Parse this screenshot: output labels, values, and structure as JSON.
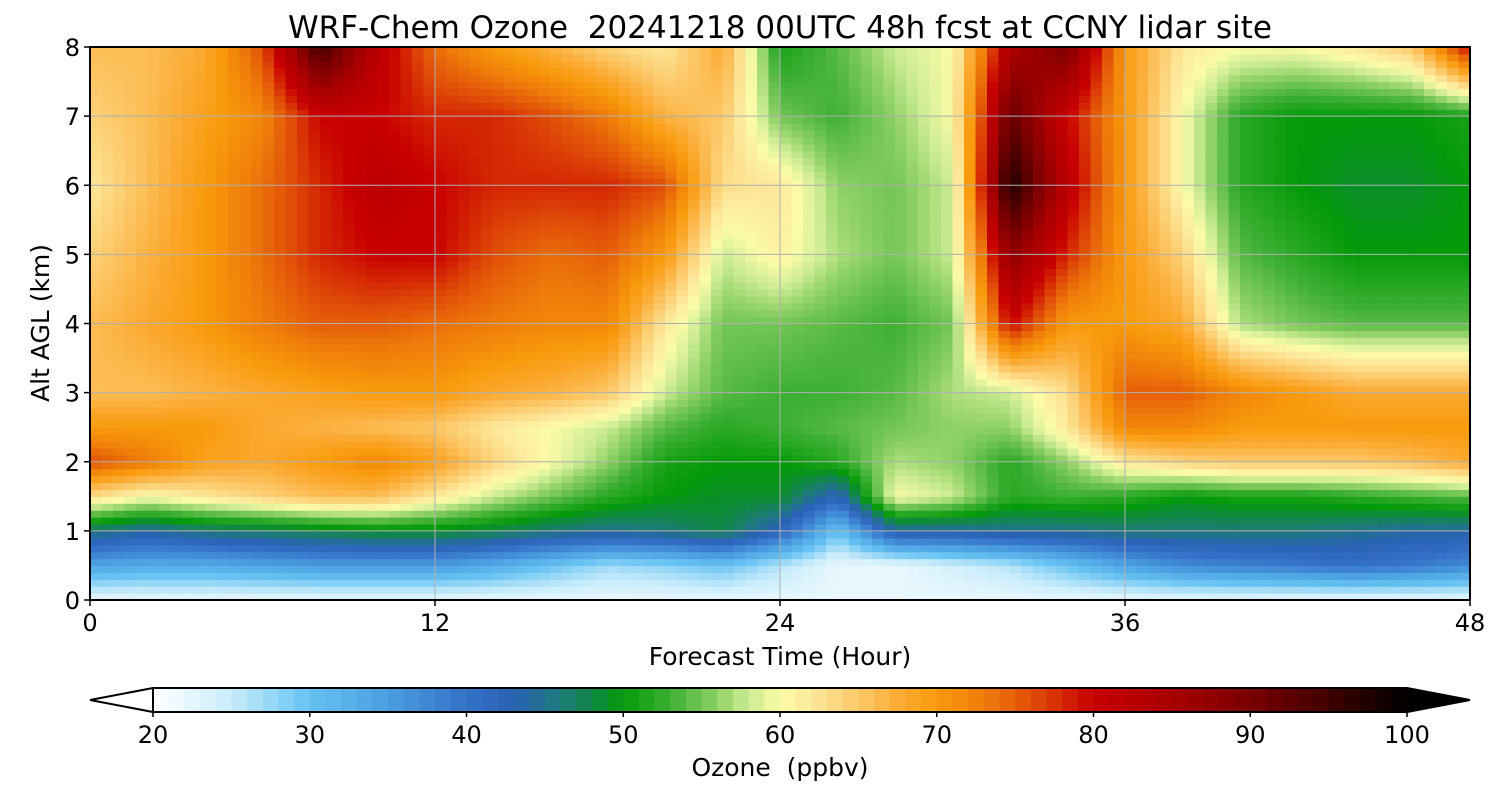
{
  "chart_data": {
    "type": "heatmap",
    "title": "WRF-Chem Ozone  20241218 00UTC 48h fcst at CCNY lidar site",
    "xlabel": "Forecast Time (Hour)",
    "ylabel": "Alt AGL (km)",
    "xlim": [
      0,
      48
    ],
    "ylim": [
      0,
      8
    ],
    "x_ticks": [
      "0",
      "12",
      "24",
      "36",
      "48"
    ],
    "y_ticks": [
      "0",
      "1",
      "2",
      "3",
      "4",
      "5",
      "6",
      "7",
      "8"
    ],
    "grid": true,
    "x": [
      0,
      2,
      4,
      6,
      8,
      10,
      12,
      14,
      16,
      18,
      20,
      22,
      24,
      26,
      28,
      30,
      32,
      34,
      36,
      38,
      40,
      42,
      44,
      46,
      48
    ],
    "y": [
      0,
      0.5,
      1,
      1.5,
      2,
      2.5,
      3,
      4,
      5,
      6,
      7,
      8
    ],
    "z": [
      [
        22,
        22,
        22,
        22,
        22,
        22,
        22,
        22,
        22,
        22,
        22,
        22,
        22,
        22,
        22,
        22,
        22,
        22,
        22,
        22,
        22,
        22,
        22,
        22,
        22
      ],
      [
        34,
        33,
        33,
        34,
        35,
        35,
        35,
        33,
        30,
        27,
        28,
        30,
        26,
        22,
        22,
        24,
        26,
        30,
        34,
        37,
        38,
        39,
        40,
        39,
        37
      ],
      [
        46,
        44,
        46,
        47,
        48,
        49,
        49,
        48,
        46,
        45,
        46,
        48,
        42,
        30,
        44,
        44,
        45,
        45,
        46,
        46,
        46,
        46,
        45,
        44,
        44
      ],
      [
        63,
        60,
        62,
        64,
        66,
        66,
        62,
        58,
        55,
        52,
        50,
        49,
        49,
        42,
        60,
        58,
        52,
        53,
        52,
        50,
        51,
        51,
        52,
        53,
        54
      ],
      [
        76,
        73,
        69,
        68,
        70,
        72,
        69,
        64,
        60,
        56,
        51,
        50,
        50,
        52,
        57,
        56,
        52,
        56,
        62,
        64,
        65,
        65,
        65,
        66,
        68
      ],
      [
        70,
        70,
        70,
        68,
        67,
        66,
        65,
        62,
        60,
        58,
        54,
        52,
        53,
        54,
        55,
        56,
        56,
        62,
        72,
        72,
        70,
        70,
        70,
        70,
        70
      ],
      [
        66,
        66,
        67,
        68,
        69,
        70,
        70,
        68,
        67,
        65,
        58,
        54,
        53,
        53,
        54,
        57,
        58,
        63,
        75,
        75,
        72,
        70,
        68,
        68,
        68
      ],
      [
        66,
        68,
        70,
        73,
        75,
        75,
        74,
        73,
        72,
        72,
        62,
        55,
        55,
        54,
        53,
        55,
        80,
        70,
        70,
        68,
        57,
        55,
        54,
        54,
        54
      ],
      [
        64,
        67,
        70,
        74,
        78,
        80,
        80,
        76,
        74,
        75,
        70,
        58,
        61,
        57,
        55,
        58,
        88,
        78,
        70,
        64,
        54,
        52,
        50,
        50,
        50
      ],
      [
        62,
        66,
        70,
        74,
        78,
        82,
        80,
        78,
        78,
        78,
        76,
        63,
        62,
        56,
        55,
        58,
        98,
        82,
        70,
        60,
        52,
        50,
        49,
        49,
        50
      ],
      [
        64,
        66,
        69,
        72,
        80,
        80,
        78,
        78,
        76,
        73,
        67,
        65,
        55,
        53,
        56,
        60,
        92,
        80,
        70,
        60,
        52,
        50,
        50,
        50,
        51
      ],
      [
        66,
        66,
        68,
        76,
        95,
        82,
        74,
        70,
        67,
        64,
        62,
        68,
        51,
        54,
        58,
        60,
        84,
        90,
        70,
        62,
        60,
        60,
        62,
        65,
        80
      ]
    ],
    "colorbar": {
      "label": "Ozone  (ppbv)",
      "ticks": [
        "20",
        "30",
        "40",
        "50",
        "60",
        "70",
        "80",
        "90",
        "100"
      ],
      "range": [
        20,
        100
      ],
      "extend": "both",
      "colors": [
        {
          "v": 20,
          "c": "#ffffff"
        },
        {
          "v": 25,
          "c": "#c8ecfb"
        },
        {
          "v": 30,
          "c": "#66c2f2"
        },
        {
          "v": 35,
          "c": "#4a9ee0"
        },
        {
          "v": 40,
          "c": "#3570c8"
        },
        {
          "v": 43,
          "c": "#2a62b4"
        },
        {
          "v": 46,
          "c": "#1d7a7a"
        },
        {
          "v": 49,
          "c": "#0a8f2a"
        },
        {
          "v": 50,
          "c": "#049a0a"
        },
        {
          "v": 53,
          "c": "#3daf33"
        },
        {
          "v": 56,
          "c": "#8fd166"
        },
        {
          "v": 58,
          "c": "#cdec94"
        },
        {
          "v": 60,
          "c": "#fbfba8"
        },
        {
          "v": 62,
          "c": "#fde89b"
        },
        {
          "v": 65,
          "c": "#fcc868"
        },
        {
          "v": 68,
          "c": "#fba82e"
        },
        {
          "v": 70,
          "c": "#f99a0c"
        },
        {
          "v": 73,
          "c": "#ef7c0a"
        },
        {
          "v": 76,
          "c": "#e04e08"
        },
        {
          "v": 80,
          "c": "#c80000"
        },
        {
          "v": 85,
          "c": "#a80000"
        },
        {
          "v": 90,
          "c": "#7a0000"
        },
        {
          "v": 95,
          "c": "#400000"
        },
        {
          "v": 100,
          "c": "#000000"
        }
      ]
    }
  }
}
